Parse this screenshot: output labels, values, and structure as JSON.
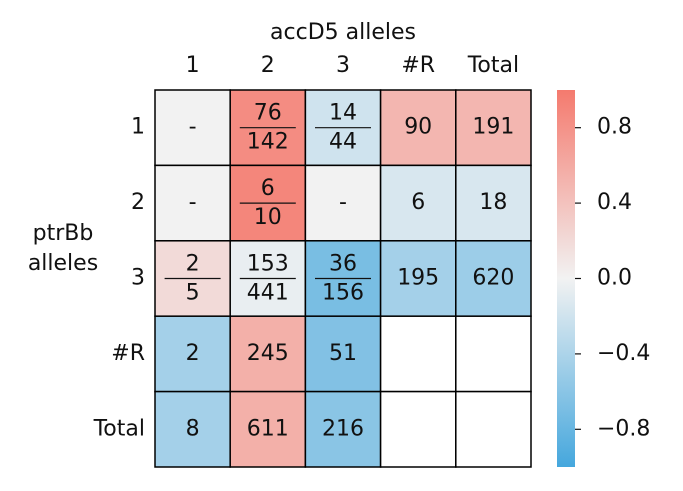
{
  "chart_data": {
    "type": "heatmap",
    "title": "accD5 alleles",
    "ylabel": [
      "ptrBb",
      "alleles"
    ],
    "columns": [
      "1",
      "2",
      "3",
      "#R",
      "Total"
    ],
    "rows": [
      "1",
      "2",
      "3",
      "#R",
      "Total"
    ],
    "values": [
      [
        0,
        0.85,
        -0.2,
        0.5,
        0.5
      ],
      [
        0,
        0.9,
        0,
        -0.15,
        -0.15
      ],
      [
        0.2,
        -0.05,
        -0.7,
        -0.45,
        -0.5
      ],
      [
        -0.45,
        0.55,
        -0.65,
        null,
        null
      ],
      [
        -0.45,
        0.55,
        -0.6,
        null,
        null
      ]
    ],
    "annotations": [
      [
        "-",
        {
          "num": "76",
          "den": "142"
        },
        {
          "num": "14",
          "den": "44"
        },
        "90",
        "191"
      ],
      [
        "-",
        {
          "num": "6",
          "den": "10"
        },
        "-",
        "6",
        "18"
      ],
      [
        {
          "num": "2",
          "den": "5"
        },
        {
          "num": "153",
          "den": "441"
        },
        {
          "num": "36",
          "den": "156"
        },
        "195",
        "620"
      ],
      [
        "2",
        "245",
        "51",
        null,
        null
      ],
      [
        "8",
        "611",
        "216",
        null,
        null
      ]
    ],
    "cmap": [
      "#45a7dd",
      "#f2f2f2",
      "#f47a6e"
    ],
    "clim": [
      -1,
      1
    ],
    "cticks": [
      {
        "value": 0.8,
        "label": "0.8"
      },
      {
        "value": 0.4,
        "label": "0.4"
      },
      {
        "value": 0.0,
        "label": "0.0"
      },
      {
        "value": -0.4,
        "label": "−0.4"
      },
      {
        "value": -0.8,
        "label": "−0.8"
      }
    ]
  }
}
